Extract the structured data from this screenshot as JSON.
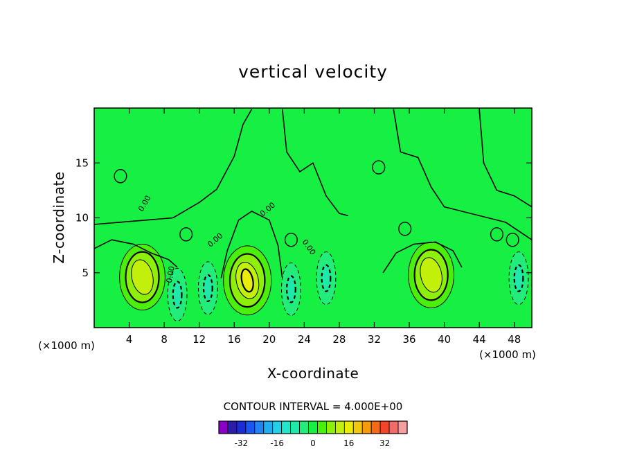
{
  "chart_data": {
    "type": "heatmap",
    "title": "vertical velocity",
    "xlabel": "X-coordinate",
    "ylabel": "Z-coordinate",
    "x_unit_left": "(×1000 m)",
    "x_unit_right": "(×1000 m)",
    "xlim": [
      0,
      50
    ],
    "ylim": [
      0,
      20
    ],
    "x_ticks": [
      4,
      8,
      12,
      16,
      20,
      24,
      28,
      32,
      36,
      40,
      44,
      48
    ],
    "y_ticks": [
      5,
      10,
      15
    ],
    "contour_interval_text": "CONTOUR INTERVAL = 4.000E+00",
    "contour_interval": 4.0,
    "inline_contour_label": "0.00",
    "colorbar": {
      "levels": [
        -40,
        -36,
        -32,
        -28,
        -24,
        -20,
        -16,
        -12,
        -8,
        -4,
        0,
        4,
        8,
        12,
        16,
        20,
        24,
        28,
        32,
        36,
        40
      ],
      "colors": [
        "#8a00c8",
        "#2a1ea8",
        "#1b2bd6",
        "#1a56f0",
        "#2283f2",
        "#21aef0",
        "#26cfe8",
        "#22e6cc",
        "#1fe9a8",
        "#22ed7a",
        "#16f042",
        "#4af00a",
        "#8ef00a",
        "#c2f00a",
        "#ecec0a",
        "#f4c80a",
        "#f79a0c",
        "#f56a14",
        "#f3452a",
        "#f26a6a",
        "#f5a0a0"
      ],
      "tick_values": [
        -32,
        -16,
        0,
        16,
        32
      ]
    },
    "background_value": 0,
    "features": [
      {
        "kind": "updraft",
        "x": 5.5,
        "z": 4.6,
        "max": 12
      },
      {
        "kind": "updraft",
        "x": 17.5,
        "z": 4.3,
        "max": 16
      },
      {
        "kind": "updraft",
        "x": 38.5,
        "z": 4.8,
        "max": 12
      },
      {
        "kind": "downdraft",
        "x": 9.5,
        "z": 3.0,
        "min": -8
      },
      {
        "kind": "downdraft",
        "x": 13.0,
        "z": 3.6,
        "min": -8
      },
      {
        "kind": "downdraft",
        "x": 22.5,
        "z": 3.5,
        "min": -8
      },
      {
        "kind": "downdraft",
        "x": 26.5,
        "z": 4.5,
        "min": -8
      },
      {
        "kind": "downdraft",
        "x": 48.5,
        "z": 4.5,
        "min": -8
      }
    ]
  }
}
